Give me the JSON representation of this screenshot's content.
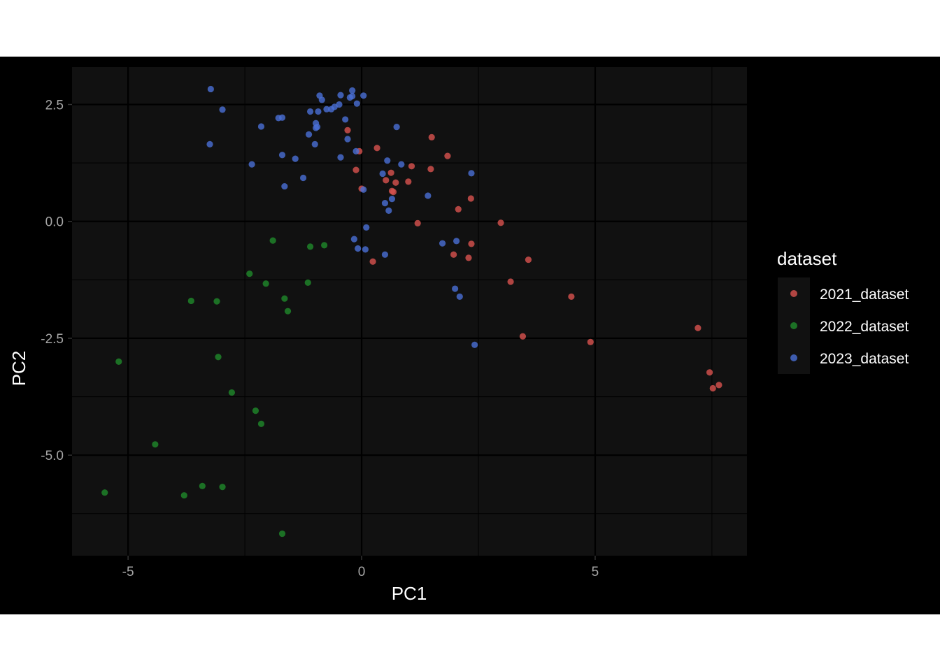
{
  "chart_data": {
    "type": "scatter",
    "title": "",
    "xlabel": "PC1",
    "ylabel": "PC2",
    "xlim": [
      -6.2,
      8.25
    ],
    "ylim": [
      -7.15,
      3.3
    ],
    "x_ticks": [
      -5,
      0,
      5
    ],
    "x_tick_labels": [
      "-5",
      "0",
      "5"
    ],
    "y_ticks": [
      2.5,
      0,
      -2.5,
      -5
    ],
    "y_tick_labels": [
      "2.5",
      "0.0",
      "-2.5",
      "-5.0"
    ],
    "grid": true,
    "background": "#111111",
    "legend": {
      "title": "dataset",
      "position": "right"
    },
    "series": [
      {
        "name": "2021_dataset",
        "color": "#d9534f",
        "points": [
          [
            -0.3,
            1.95
          ],
          [
            0.33,
            1.57
          ],
          [
            1.5,
            1.8
          ],
          [
            -0.05,
            1.5
          ],
          [
            1.84,
            1.4
          ],
          [
            -0.12,
            1.1
          ],
          [
            1.07,
            1.18
          ],
          [
            1.48,
            1.12
          ],
          [
            0.63,
            1.04
          ],
          [
            0.52,
            0.88
          ],
          [
            1.0,
            0.85
          ],
          [
            0.73,
            0.83
          ],
          [
            0.0,
            0.7
          ],
          [
            0.65,
            0.65
          ],
          [
            0.68,
            0.63
          ],
          [
            2.34,
            0.49
          ],
          [
            2.07,
            0.26
          ],
          [
            1.2,
            -0.04
          ],
          [
            2.98,
            -0.03
          ],
          [
            1.97,
            -0.71
          ],
          [
            2.35,
            -0.48
          ],
          [
            2.29,
            -0.78
          ],
          [
            0.24,
            -0.86
          ],
          [
            3.57,
            -0.82
          ],
          [
            3.19,
            -1.29
          ],
          [
            4.49,
            -1.61
          ],
          [
            3.45,
            -2.46
          ],
          [
            4.9,
            -2.58
          ],
          [
            7.2,
            -2.28
          ],
          [
            7.45,
            -3.23
          ],
          [
            7.52,
            -3.57
          ],
          [
            7.65,
            -3.5
          ]
        ]
      },
      {
        "name": "2022_dataset",
        "color": "#1f8a2a",
        "points": [
          [
            -1.9,
            -0.41
          ],
          [
            -1.1,
            -0.54
          ],
          [
            -0.8,
            -0.51
          ],
          [
            -2.4,
            -1.12
          ],
          [
            -2.05,
            -1.33
          ],
          [
            -1.15,
            -1.31
          ],
          [
            -3.65,
            -1.7
          ],
          [
            -3.1,
            -1.71
          ],
          [
            -1.65,
            -1.65
          ],
          [
            -1.58,
            -1.92
          ],
          [
            -5.2,
            -3.0
          ],
          [
            -3.07,
            -2.9
          ],
          [
            -2.78,
            -3.66
          ],
          [
            -2.27,
            -4.05
          ],
          [
            -2.15,
            -4.33
          ],
          [
            -4.42,
            -4.77
          ],
          [
            -5.5,
            -5.8
          ],
          [
            -3.41,
            -5.66
          ],
          [
            -2.98,
            -5.68
          ],
          [
            -3.8,
            -5.86
          ],
          [
            -1.7,
            -6.68
          ]
        ]
      },
      {
        "name": "2023_dataset",
        "color": "#4a6fd6",
        "points": [
          [
            -3.23,
            2.83
          ],
          [
            -2.98,
            2.39
          ],
          [
            -0.9,
            2.69
          ],
          [
            -0.85,
            2.6
          ],
          [
            -0.45,
            2.7
          ],
          [
            -0.2,
            2.8
          ],
          [
            0.04,
            2.69
          ],
          [
            -0.2,
            2.68
          ],
          [
            -0.25,
            2.65
          ],
          [
            -0.48,
            2.5
          ],
          [
            -0.58,
            2.45
          ],
          [
            -0.65,
            2.4
          ],
          [
            -0.75,
            2.4
          ],
          [
            -0.93,
            2.35
          ],
          [
            -1.1,
            2.35
          ],
          [
            -0.1,
            2.52
          ],
          [
            -1.78,
            2.21
          ],
          [
            -1.7,
            2.22
          ],
          [
            -0.35,
            2.18
          ],
          [
            -0.98,
            2.1
          ],
          [
            -0.95,
            2.02
          ],
          [
            -2.15,
            2.03
          ],
          [
            0.75,
            2.02
          ],
          [
            -1.13,
            1.86
          ],
          [
            -0.3,
            1.76
          ],
          [
            -0.98,
            2.0
          ],
          [
            -3.25,
            1.65
          ],
          [
            -1.0,
            1.65
          ],
          [
            -0.12,
            1.5
          ],
          [
            -0.45,
            1.37
          ],
          [
            -1.7,
            1.42
          ],
          [
            -1.42,
            1.34
          ],
          [
            0.55,
            1.3
          ],
          [
            0.85,
            1.22
          ],
          [
            -2.35,
            1.22
          ],
          [
            0.45,
            1.02
          ],
          [
            2.35,
            1.03
          ],
          [
            -1.25,
            0.93
          ],
          [
            -1.65,
            0.75
          ],
          [
            0.04,
            0.68
          ],
          [
            1.42,
            0.55
          ],
          [
            0.65,
            0.48
          ],
          [
            0.5,
            0.39
          ],
          [
            0.58,
            0.23
          ],
          [
            0.1,
            -0.13
          ],
          [
            -0.16,
            -0.38
          ],
          [
            -0.08,
            -0.58
          ],
          [
            0.08,
            -0.6
          ],
          [
            1.73,
            -0.47
          ],
          [
            2.03,
            -0.42
          ],
          [
            0.5,
            -0.71
          ],
          [
            2.0,
            -1.44
          ],
          [
            2.1,
            -1.61
          ],
          [
            2.42,
            -2.64
          ]
        ]
      }
    ]
  }
}
